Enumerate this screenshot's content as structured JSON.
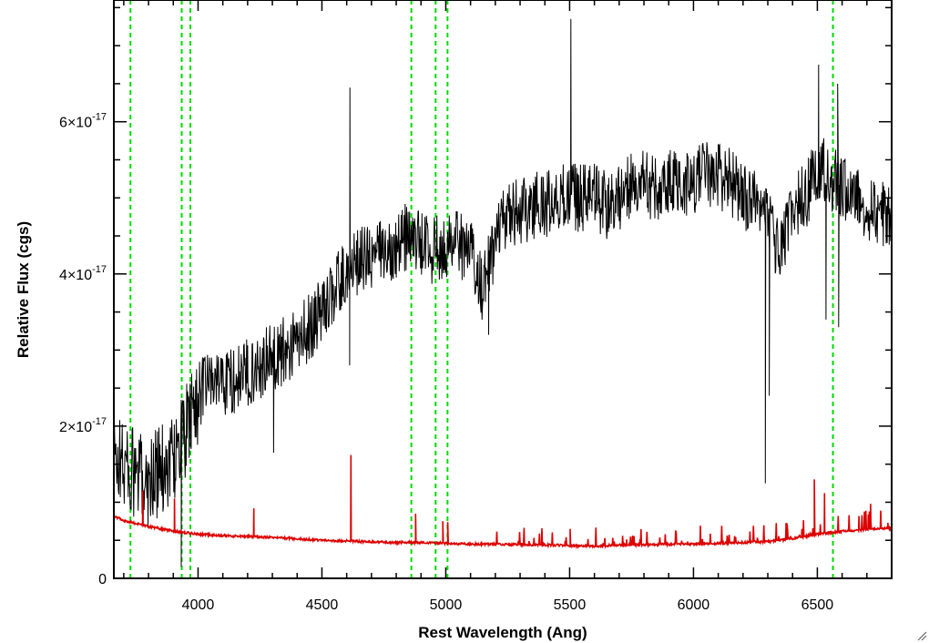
{
  "chart_data": {
    "type": "line",
    "title": "",
    "xlabel": "Rest Wavelength (Ang)",
    "ylabel": "Relative Flux (cgs)",
    "xlim": [
      3660,
      6800
    ],
    "ylim": [
      0,
      7.6e-17
    ],
    "x_ticks": [
      4000,
      4500,
      5000,
      5500,
      6000,
      6500
    ],
    "x_tick_labels": [
      "4000",
      "4500",
      "5000",
      "5500",
      "6000",
      "6500"
    ],
    "x_minor_step": 100,
    "y_ticks": [
      0,
      2e-17,
      4e-17,
      6e-17
    ],
    "y_tick_labels": [
      {
        "base": "0",
        "exp": ""
      },
      {
        "base": "2×10",
        "exp": "-17"
      },
      {
        "base": "4×10",
        "exp": "-17"
      },
      {
        "base": "6×10",
        "exp": "-17"
      }
    ],
    "y_minor_step": 5e-18,
    "grid": false,
    "vlines": {
      "color": "#00dd00",
      "style": "dashed",
      "x": [
        3727,
        3934,
        3969,
        4861,
        4959,
        5007,
        6563
      ]
    },
    "series": [
      {
        "color": "#000000",
        "units": "1e-17",
        "x": [
          3660,
          3700,
          3750,
          3800,
          3850,
          3900,
          3950,
          4000,
          4050,
          4100,
          4150,
          4200,
          4250,
          4300,
          4350,
          4400,
          4450,
          4500,
          4550,
          4600,
          4650,
          4700,
          4750,
          4800,
          4850,
          4900,
          4950,
          5000,
          5050,
          5100,
          5150,
          5200,
          5250,
          5300,
          5350,
          5400,
          5450,
          5500,
          5550,
          5600,
          5650,
          5700,
          5750,
          5800,
          5850,
          5900,
          5950,
          6000,
          6050,
          6100,
          6150,
          6200,
          6250,
          6300,
          6350,
          6400,
          6450,
          6500,
          6550,
          6600,
          6650,
          6700,
          6750,
          6800
        ],
        "y": [
          1.6,
          1.5,
          1.3,
          1.3,
          1.4,
          1.6,
          1.9,
          2.4,
          2.6,
          2.6,
          2.6,
          2.7,
          2.8,
          2.9,
          3.0,
          3.1,
          3.3,
          3.5,
          3.8,
          4.0,
          4.2,
          4.2,
          4.3,
          4.4,
          4.5,
          4.4,
          4.3,
          4.4,
          4.4,
          4.3,
          3.8,
          4.4,
          4.8,
          4.8,
          4.9,
          4.9,
          5.0,
          5.0,
          5.0,
          5.0,
          4.9,
          5.0,
          5.2,
          5.2,
          5.1,
          5.2,
          5.2,
          5.2,
          5.3,
          5.3,
          5.2,
          5.0,
          4.9,
          4.8,
          4.2,
          4.9,
          5.0,
          5.4,
          5.3,
          5.1,
          5.1,
          4.9,
          4.8,
          4.8
        ],
        "noise": 0.45,
        "features": [
          {
            "x": 4613,
            "y": 6.45
          },
          {
            "x": 4612,
            "y": 2.8
          },
          {
            "x": 4305,
            "y": 1.65
          },
          {
            "x": 3932,
            "y": 0.15
          },
          {
            "x": 5173,
            "y": 3.2
          },
          {
            "x": 5505,
            "y": 7.35
          },
          {
            "x": 6290,
            "y": 1.25
          },
          {
            "x": 6306,
            "y": 2.4
          },
          {
            "x": 6505,
            "y": 6.75
          },
          {
            "x": 6535,
            "y": 3.4
          },
          {
            "x": 6582,
            "y": 6.5
          },
          {
            "x": 6586,
            "y": 3.3
          }
        ]
      },
      {
        "color": "#dd0000",
        "units": "1e-17",
        "x": [
          3660,
          3700,
          3800,
          3900,
          4000,
          4100,
          4200,
          4300,
          4400,
          4500,
          4600,
          4700,
          4800,
          4900,
          5000,
          5100,
          5200,
          5300,
          5400,
          5500,
          5600,
          5700,
          5800,
          5900,
          6000,
          6100,
          6200,
          6300,
          6400,
          6500,
          6600,
          6700,
          6800
        ],
        "y": [
          0.82,
          0.76,
          0.68,
          0.62,
          0.58,
          0.56,
          0.55,
          0.54,
          0.52,
          0.5,
          0.49,
          0.48,
          0.47,
          0.47,
          0.46,
          0.45,
          0.45,
          0.44,
          0.44,
          0.43,
          0.42,
          0.44,
          0.44,
          0.45,
          0.45,
          0.46,
          0.47,
          0.48,
          0.52,
          0.58,
          0.62,
          0.64,
          0.66
        ],
        "features": [
          {
            "x": 3777,
            "y": 1.15
          },
          {
            "x": 3905,
            "y": 1.05
          },
          {
            "x": 4225,
            "y": 0.92
          },
          {
            "x": 4617,
            "y": 1.62
          },
          {
            "x": 4878,
            "y": 0.85
          },
          {
            "x": 4988,
            "y": 0.75
          },
          {
            "x": 5008,
            "y": 0.74
          },
          {
            "x": 5502,
            "y": 0.65
          },
          {
            "x": 6488,
            "y": 1.3
          },
          {
            "x": 6529,
            "y": 1.12
          },
          {
            "x": 6715,
            "y": 0.98
          },
          {
            "x": 6785,
            "y": 0.73
          }
        ]
      }
    ]
  }
}
